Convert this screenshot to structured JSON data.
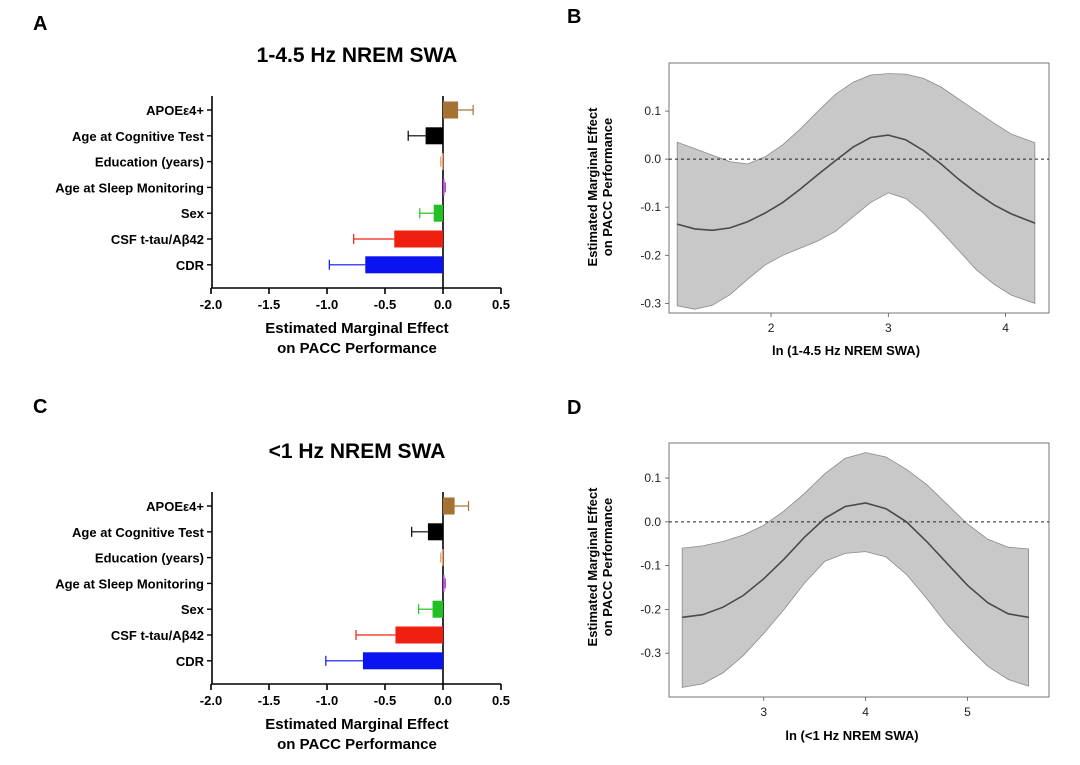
{
  "panels": {
    "a": "A",
    "b": "B",
    "c": "C",
    "d": "D"
  },
  "chart_data": [
    {
      "panel": "A",
      "type": "bar",
      "orientation": "horizontal",
      "title": "1-4.5 Hz NREM SWA",
      "xlabel_line1": "Estimated Marginal Effect",
      "xlabel_line2": "on PACC Performance",
      "xlim": [
        -2.0,
        0.5
      ],
      "xticks": [
        "-2.0",
        "-1.5",
        "-1.0",
        "-0.5",
        "0.0",
        "0.5"
      ],
      "categories": [
        "APOEε4+",
        "Age at Cognitive Test",
        "Education (years)",
        "Age at Sleep Monitoring",
        "Sex",
        "CSF t-tau/Aβ42",
        "CDR"
      ],
      "values": [
        0.13,
        -0.15,
        -0.01,
        0.01,
        -0.08,
        -0.42,
        -0.67
      ],
      "errors": [
        0.13,
        0.15,
        0.01,
        0.01,
        0.12,
        0.35,
        0.31
      ],
      "colors": [
        "#A67232",
        "#000000",
        "#E8A070",
        "#B040D0",
        "#22C022",
        "#F02010",
        "#0A14F0"
      ]
    },
    {
      "panel": "B",
      "type": "line",
      "xlabel": "ln (1-4.5 Hz NREM SWA)",
      "ylabel_line1": "Estimated Marginal Effect",
      "ylabel_line2": "on PACC Performance",
      "xlim": [
        1.13,
        4.37
      ],
      "ylim": [
        -0.32,
        0.2
      ],
      "xticks": [
        "2",
        "3",
        "4"
      ],
      "yticks": [
        "0.1",
        "0.0",
        "-0.1",
        "-0.2",
        "-0.3"
      ],
      "reference_line": 0.0,
      "x": [
        1.2,
        1.35,
        1.5,
        1.65,
        1.8,
        1.95,
        2.1,
        2.25,
        2.4,
        2.55,
        2.7,
        2.85,
        3.0,
        3.15,
        3.3,
        3.45,
        3.6,
        3.75,
        3.9,
        4.05,
        4.25
      ],
      "estimate": [
        -0.135,
        -0.145,
        -0.148,
        -0.143,
        -0.13,
        -0.112,
        -0.09,
        -0.062,
        -0.032,
        -0.003,
        0.025,
        0.045,
        0.05,
        0.04,
        0.018,
        -0.01,
        -0.042,
        -0.07,
        -0.095,
        -0.114,
        -0.133
      ],
      "ci_upper": [
        0.035,
        0.022,
        0.008,
        -0.005,
        -0.01,
        0.005,
        0.03,
        0.063,
        0.1,
        0.135,
        0.16,
        0.175,
        0.178,
        0.177,
        0.168,
        0.15,
        0.125,
        0.1,
        0.075,
        0.052,
        0.034
      ],
      "ci_lower": [
        -0.305,
        -0.312,
        -0.304,
        -0.282,
        -0.25,
        -0.22,
        -0.2,
        -0.185,
        -0.17,
        -0.15,
        -0.12,
        -0.09,
        -0.07,
        -0.082,
        -0.112,
        -0.15,
        -0.19,
        -0.23,
        -0.26,
        -0.283,
        -0.3
      ]
    },
    {
      "panel": "C",
      "type": "bar",
      "orientation": "horizontal",
      "title": "<1 Hz NREM SWA",
      "xlabel_line1": "Estimated Marginal Effect",
      "xlabel_line2": "on PACC Performance",
      "xlim": [
        -2.0,
        0.5
      ],
      "xticks": [
        "-2.0",
        "-1.5",
        "-1.0",
        "-0.5",
        "0.0",
        "0.5"
      ],
      "categories": [
        "APOEε4+",
        "Age at Cognitive Test",
        "Education (years)",
        "Age at Sleep Monitoring",
        "Sex",
        "CSF t-tau/Aβ42",
        "CDR"
      ],
      "values": [
        0.1,
        -0.13,
        -0.01,
        0.01,
        -0.09,
        -0.41,
        -0.69
      ],
      "errors": [
        0.12,
        0.14,
        0.01,
        0.01,
        0.12,
        0.34,
        0.32
      ],
      "colors": [
        "#A67232",
        "#000000",
        "#E8A070",
        "#B040D0",
        "#22C022",
        "#F02010",
        "#0A14F0"
      ]
    },
    {
      "panel": "D",
      "type": "line",
      "xlabel": "ln (<1 Hz NREM SWA)",
      "ylabel_line1": "Estimated Marginal Effect",
      "ylabel_line2": "on PACC Performance",
      "xlim": [
        2.07,
        5.8
      ],
      "ylim": [
        -0.4,
        0.18
      ],
      "xticks": [
        "3",
        "4",
        "5"
      ],
      "yticks": [
        "0.1",
        "0.0",
        "-0.1",
        "-0.2",
        "-0.3"
      ],
      "reference_line": 0.0,
      "x": [
        2.2,
        2.4,
        2.6,
        2.8,
        3.0,
        3.2,
        3.4,
        3.6,
        3.8,
        4.0,
        4.2,
        4.4,
        4.6,
        4.8,
        5.0,
        5.2,
        5.4,
        5.6
      ],
      "estimate": [
        -0.218,
        -0.212,
        -0.195,
        -0.168,
        -0.13,
        -0.085,
        -0.035,
        0.008,
        0.035,
        0.043,
        0.03,
        0.0,
        -0.045,
        -0.095,
        -0.145,
        -0.185,
        -0.21,
        -0.218
      ],
      "ci_upper": [
        -0.06,
        -0.055,
        -0.045,
        -0.03,
        -0.008,
        0.025,
        0.065,
        0.11,
        0.145,
        0.158,
        0.148,
        0.12,
        0.085,
        0.04,
        -0.005,
        -0.04,
        -0.058,
        -0.062
      ],
      "ci_lower": [
        -0.378,
        -0.37,
        -0.345,
        -0.305,
        -0.255,
        -0.2,
        -0.14,
        -0.09,
        -0.072,
        -0.068,
        -0.08,
        -0.12,
        -0.175,
        -0.235,
        -0.285,
        -0.33,
        -0.36,
        -0.375
      ]
    }
  ]
}
